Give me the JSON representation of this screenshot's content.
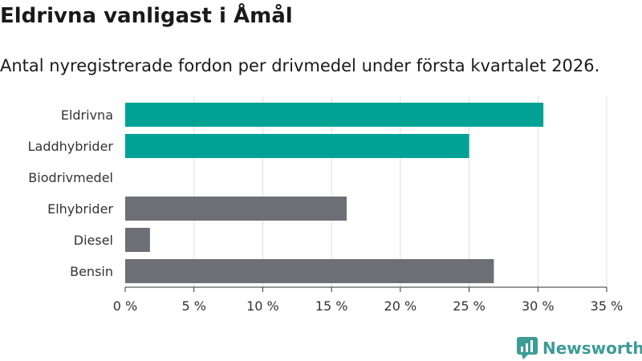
{
  "header": {
    "title": "Eldrivna vanligast i Åmål",
    "subtitle": "Antal nyregistrerade fordon per drivmedel under första kvartalet 2026."
  },
  "brand": {
    "name": "Newsworthy",
    "icon": "newsworthy-logo-icon",
    "color": "#3e9b95"
  },
  "colors": {
    "highlight": "#00a295",
    "default": "#6e6e75",
    "grid": "#dddddd"
  },
  "chart_data": {
    "type": "bar",
    "orientation": "horizontal",
    "categories": [
      "Eldrivna",
      "Laddhybrider",
      "Biodrivmedel",
      "Elhybrider",
      "Diesel",
      "Bensin"
    ],
    "values": [
      30.4,
      25.0,
      0,
      16.1,
      1.8,
      26.8
    ],
    "highlighted": [
      true,
      true,
      true,
      false,
      false,
      false
    ],
    "xlim": [
      0,
      35
    ],
    "xticks": [
      0,
      5,
      10,
      15,
      20,
      25,
      30,
      35
    ],
    "tick_suffix": " %",
    "grid": true,
    "legend": "none"
  }
}
